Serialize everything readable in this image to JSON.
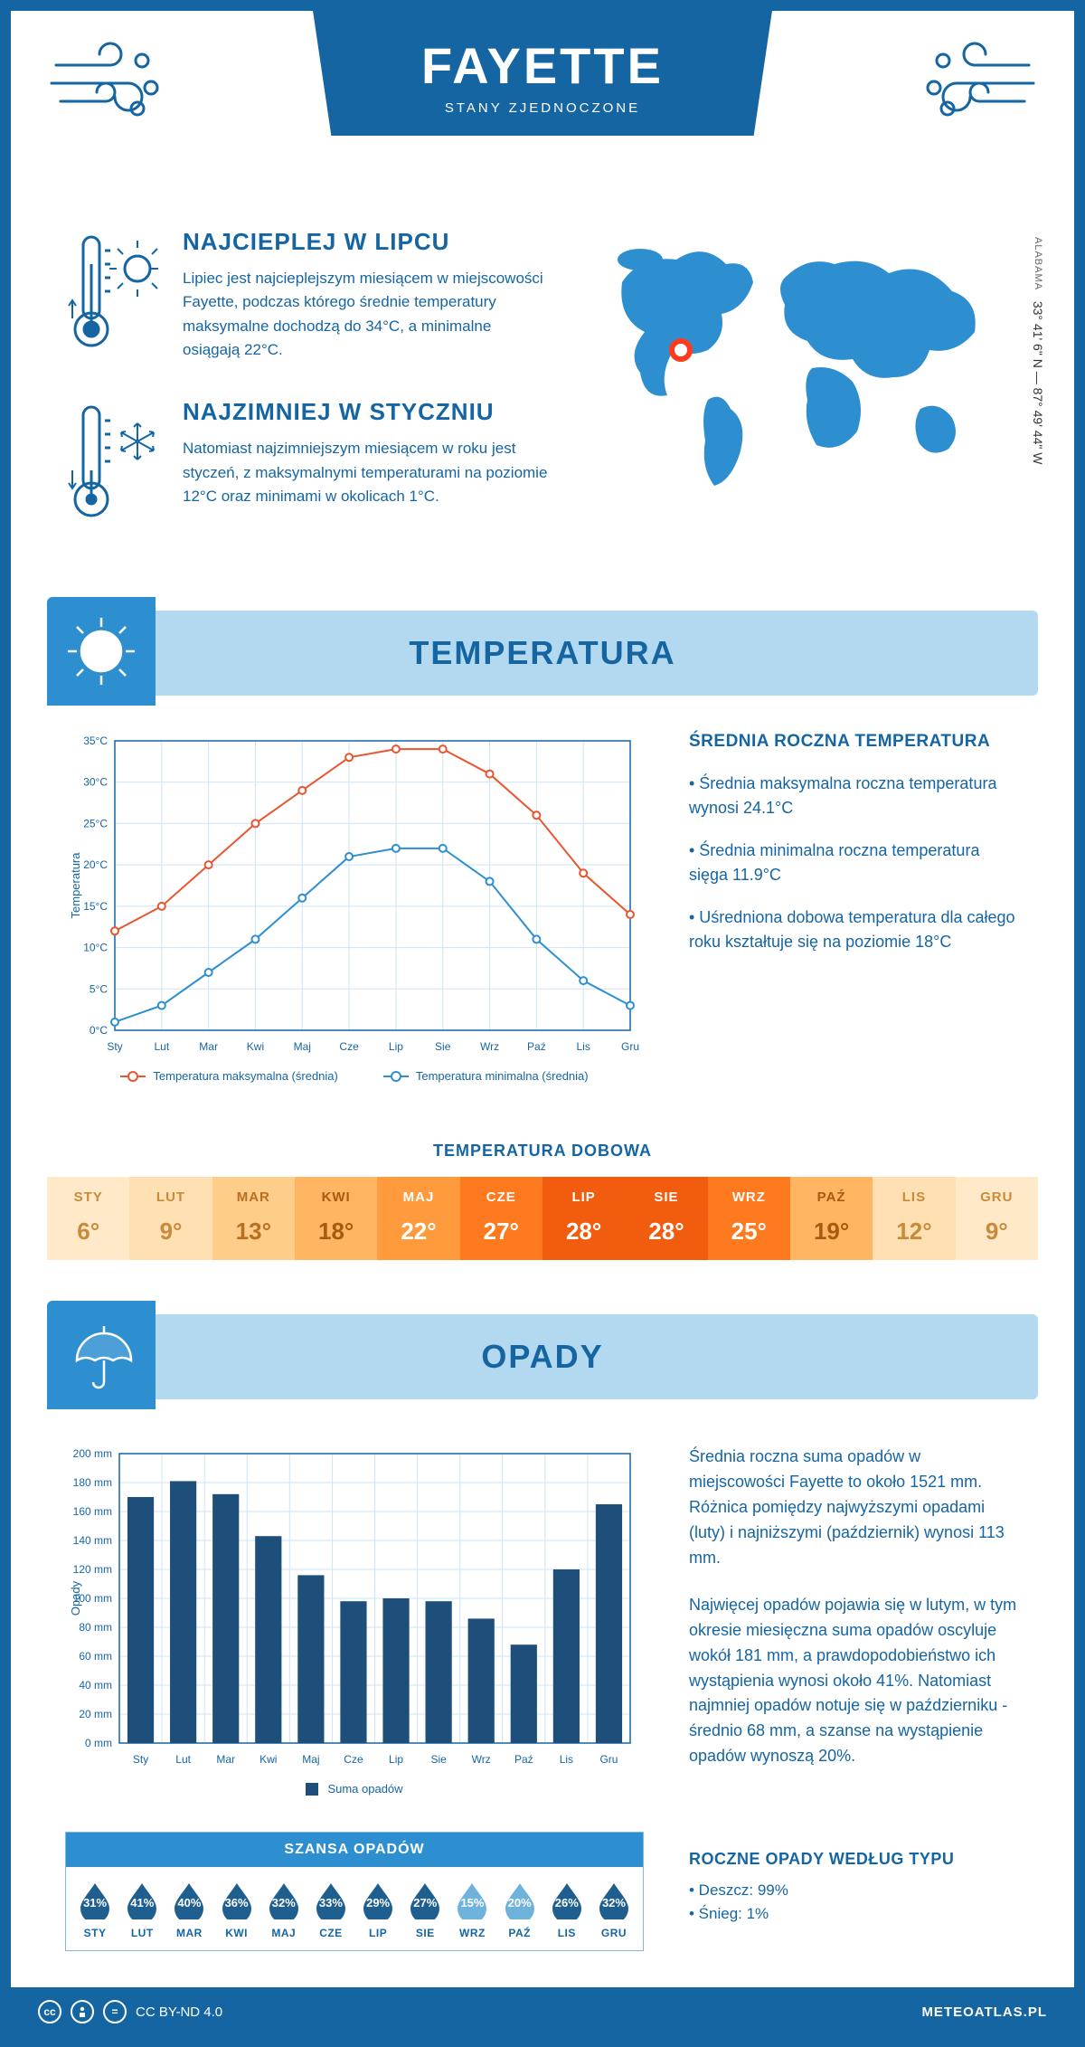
{
  "header": {
    "title": "FAYETTE",
    "subtitle": "STANY ZJEDNOCZONE"
  },
  "coords": {
    "state": "ALABAMA",
    "value": "33° 41' 6\" N — 87° 49' 44\" W"
  },
  "intro": {
    "hot": {
      "title": "NAJCIEPLEJ W LIPCU",
      "text": "Lipiec jest najcieplejszym miesiącem w miejscowości Fayette, podczas którego średnie temperatury maksymalne dochodzą do 34°C, a minimalne osiągają 22°C."
    },
    "cold": {
      "title": "NAJZIMNIEJ W STYCZNIU",
      "text": "Natomiast najzimniejszym miesiącem w roku jest styczeń, z maksymalnymi temperaturami na poziomie 12°C oraz minimami w okolicach 1°C."
    }
  },
  "temperature": {
    "section_title": "TEMPERATURA",
    "info_title": "ŚREDNIA ROCZNA TEMPERATURA",
    "bullets": [
      "• Średnia maksymalna roczna temperatura wynosi 24.1°C",
      "• Średnia minimalna roczna temperatura sięga 11.9°C",
      "• Uśredniona dobowa temperatura dla całego roku kształtuje się na poziomie 18°C"
    ],
    "chart": {
      "type": "line",
      "months": [
        "Sty",
        "Lut",
        "Mar",
        "Kwi",
        "Maj",
        "Cze",
        "Lip",
        "Sie",
        "Wrz",
        "Paź",
        "Lis",
        "Gru"
      ],
      "max": [
        12,
        15,
        20,
        25,
        29,
        33,
        34,
        34,
        31,
        26,
        19,
        14
      ],
      "min": [
        1,
        3,
        7,
        11,
        16,
        21,
        22,
        22,
        18,
        11,
        6,
        3
      ],
      "ylim": [
        0,
        35
      ],
      "ytick_step": 5,
      "ylabel": "Temperatura",
      "max_color": "#e8552e",
      "min_color": "#2e8fd0",
      "grid_color": "#cde4f5",
      "border_color": "#1565a3",
      "legend_max": "Temperatura maksymalna (średnia)",
      "legend_min": "Temperatura minimalna (średnia)",
      "ytick_labels": [
        "0°C",
        "5°C",
        "10°C",
        "15°C",
        "20°C",
        "25°C",
        "30°C",
        "35°C"
      ]
    },
    "daily": {
      "title": "TEMPERATURA DOBOWA",
      "months": [
        "STY",
        "LUT",
        "MAR",
        "KWI",
        "MAJ",
        "CZE",
        "LIP",
        "SIE",
        "WRZ",
        "PAŹ",
        "LIS",
        "GRU"
      ],
      "values": [
        "6°",
        "9°",
        "13°",
        "18°",
        "22°",
        "27°",
        "28°",
        "28°",
        "25°",
        "19°",
        "12°",
        "9°"
      ],
      "colors": [
        "#ffe9c9",
        "#ffe0b3",
        "#ffcd8a",
        "#ffb561",
        "#ff9a3d",
        "#ff7a1f",
        "#f25c0e",
        "#f25c0e",
        "#ff7a1f",
        "#ffb561",
        "#ffe0b3",
        "#ffe9c9"
      ],
      "text_colors": [
        "#c98b3a",
        "#c98b3a",
        "#b86f20",
        "#a85a10",
        "#ffffff",
        "#ffffff",
        "#ffffff",
        "#ffffff",
        "#ffffff",
        "#a85a10",
        "#c98b3a",
        "#c98b3a"
      ]
    }
  },
  "precip": {
    "section_title": "OPADY",
    "text1": "Średnia roczna suma opadów w miejscowości Fayette to około 1521 mm. Różnica pomiędzy najwyższymi opadami (luty) i najniższymi (październik) wynosi 113 mm.",
    "text2": "Najwięcej opadów pojawia się w lutym, w tym okresie miesięczna suma opadów oscyluje wokół 181 mm, a prawdopodobieństwo ich wystąpienia wynosi około 41%. Natomiast najmniej opadów notuje się w październiku - średnio 68 mm, a szanse na wystąpienie opadów wynoszą 20%.",
    "chart": {
      "type": "bar",
      "months": [
        "Sty",
        "Lut",
        "Mar",
        "Kwi",
        "Maj",
        "Cze",
        "Lip",
        "Sie",
        "Wrz",
        "Paź",
        "Lis",
        "Gru"
      ],
      "values": [
        170,
        181,
        172,
        143,
        116,
        98,
        100,
        98,
        86,
        68,
        120,
        165
      ],
      "ylim": [
        0,
        200
      ],
      "ytick_step": 20,
      "ylabel": "Opady",
      "bar_color": "#1e4f7a",
      "grid_color": "#cde4f5",
      "border_color": "#1565a3",
      "legend": "Suma opadów",
      "ytick_labels": [
        "0 mm",
        "20 mm",
        "40 mm",
        "60 mm",
        "80 mm",
        "100 mm",
        "120 mm",
        "140 mm",
        "160 mm",
        "180 mm",
        "200 mm"
      ]
    },
    "chance": {
      "title": "SZANSA OPADÓW",
      "months": [
        "STY",
        "LUT",
        "MAR",
        "KWI",
        "MAJ",
        "CZE",
        "LIP",
        "SIE",
        "WRZ",
        "PAŹ",
        "LIS",
        "GRU"
      ],
      "values": [
        "31%",
        "41%",
        "40%",
        "36%",
        "32%",
        "33%",
        "29%",
        "27%",
        "15%",
        "20%",
        "26%",
        "32%"
      ],
      "drop_colors": [
        "#1e5f8f",
        "#1e5f8f",
        "#1e5f8f",
        "#1e5f8f",
        "#1e5f8f",
        "#1e5f8f",
        "#1e5f8f",
        "#1e5f8f",
        "#6fb3dd",
        "#6fb3dd",
        "#1e5f8f",
        "#1e5f8f"
      ]
    },
    "types": {
      "title": "ROCZNE OPADY WEDŁUG TYPU",
      "rain": "• Deszcz: 99%",
      "snow": "• Śnieg: 1%"
    }
  },
  "footer": {
    "license": "CC BY-ND 4.0",
    "site": "METEOATLAS.PL"
  },
  "colors": {
    "primary": "#1565a3",
    "accent": "#2e8fd0",
    "light": "#b3d9f0",
    "marker": "#ff3b1f"
  }
}
